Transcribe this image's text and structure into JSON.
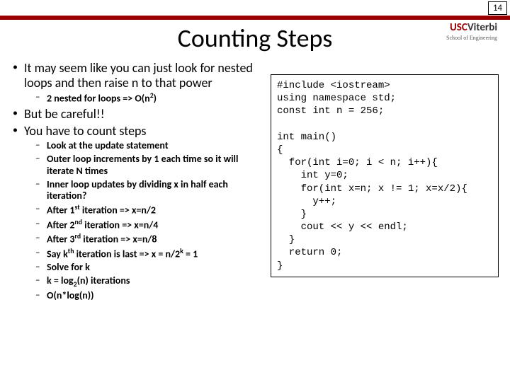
{
  "page_number": "14",
  "logo": {
    "usc": "USC",
    "viterbi": "Viterbi",
    "sub": "School of Engineering"
  },
  "title": "Counting Steps",
  "bullets": {
    "b1": "It may seem like you can just look for nested loops and then raise n to that power",
    "b1_1_pre": "2 nested for loops => O(n",
    "b1_1_sup": "2",
    "b1_1_post": ")",
    "b2": "But be careful!!",
    "b3": "You have to count steps",
    "b3_1": "Look at the update statement",
    "b3_2": "Outer loop increments by 1 each time so it will iterate N times",
    "b3_3": "Inner loop updates by dividing x in half each iteration?",
    "b3_4_pre": "After 1",
    "b3_4_sup": "st",
    "b3_4_post": " iteration => x=n/2",
    "b3_5_pre": "After 2",
    "b3_5_sup": "nd",
    "b3_5_post": " iteration => x=n/4",
    "b3_6_pre": "After 3",
    "b3_6_sup": "rd",
    "b3_6_post": " iteration => x=n/8",
    "b3_7_pre": "Say k",
    "b3_7_sup": "th",
    "b3_7_mid": " iteration is last => x = n/2",
    "b3_7_sup2": "k",
    "b3_7_post": " = 1",
    "b3_8": "Solve for k",
    "b3_9_pre": "k = log",
    "b3_9_sub": "2",
    "b3_9_post": "(n) iterations",
    "b3_10": "O(n*log(n))"
  },
  "code": "#include <iostream>\nusing namespace std;\nconst int n = 256;\n\nint main()\n{\n  for(int i=0; i < n; i++){\n    int y=0;\n    for(int x=n; x != 1; x=x/2){\n      y++;\n    }\n    cout << y << endl;\n  }\n  return 0;\n}"
}
